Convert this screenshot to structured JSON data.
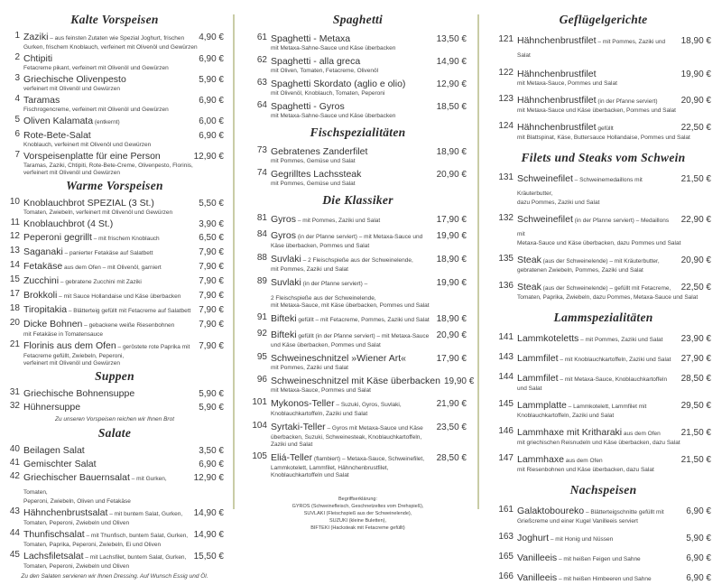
{
  "colors": {
    "divider": "#c9cca6",
    "text": "#3a3a3a"
  },
  "columns": [
    {
      "sections": [
        {
          "title": "Kalte Vorspeisen",
          "items": [
            {
              "no": "1",
              "name": "Zaziki",
              "inline": " – aus feinsten Zutaten wie Spezial Joghurt, frischen",
              "desc": [
                "Gurken, frischem Knoblauch, verfeinert mit Olivenöl und Gewürzen"
              ],
              "price": "4,90 €"
            },
            {
              "no": "2",
              "name": "Chtipiti",
              "inline": "",
              "desc": [
                "Fetacreme pikant, verfeinert mit Olivenöl und Gewürzen"
              ],
              "price": "6,90 €"
            },
            {
              "no": "3",
              "name": "Griechische Olivenpesto",
              "inline": "",
              "desc": [
                "verfeinert mit Olivenöl und Gewürzen"
              ],
              "price": "5,90 €"
            },
            {
              "no": "4",
              "name": "Taramas",
              "inline": "",
              "desc": [
                "Fischrogencreme, verfeinert mit Olivenöl und Gewürzen"
              ],
              "price": "6,90 €"
            },
            {
              "no": "5",
              "name": "Oliven Kalamata",
              "inline": " (entkernt)",
              "desc": [],
              "price": "6,00 €"
            },
            {
              "no": "6",
              "name": "Rote-Bete-Salat",
              "inline": "",
              "desc": [
                "Knoblauch, verfeinert mit Olivenöl und Gewürzen"
              ],
              "price": "6,90 €"
            },
            {
              "no": "7",
              "name": "Vorspeisenplatte für eine Person",
              "inline": "",
              "desc": [
                "Taramas, Zaziki, Chtipiti, Rote-Bete-Creme, Olivenpesto, Florinis,",
                "verfeinert mit Olivenöl und Gewürzen"
              ],
              "price": "12,90 €"
            }
          ]
        },
        {
          "title": "Warme Vorspeisen",
          "items": [
            {
              "no": "10",
              "name": "Knoblauchbrot SPEZIAL (3 St.)",
              "inline": "",
              "desc": [
                "Tomaten, Zwiebeln, verfeinert mit Olivenöl und Gewürzen"
              ],
              "price": "5,50 €"
            },
            {
              "no": "11",
              "name": "Knoblauchbrot (4 St.)",
              "inline": "",
              "desc": [],
              "price": "3,90 €"
            },
            {
              "no": "12",
              "name": "Peperoni gegrillt",
              "inline": " – mit frischem Knoblauch",
              "desc": [],
              "price": "6,50 €"
            },
            {
              "no": "13",
              "name": "Saganaki",
              "inline": " – panierter Fetakäse auf Salatbett",
              "desc": [],
              "price": "7,90 €"
            },
            {
              "no": "14",
              "name": "Fetakäse",
              "inline": " aus dem Ofen – mit Olivenöl, garniert",
              "desc": [],
              "price": "7,90 €"
            },
            {
              "no": "15",
              "name": "Zucchini",
              "inline": " – gebratene Zucchini mit Zaziki",
              "desc": [],
              "price": "7,90 €"
            },
            {
              "no": "17",
              "name": "Brokkoli",
              "inline": " – mit Sauce Hollandaise und Käse überbacken",
              "desc": [],
              "price": "7,90 €"
            },
            {
              "no": "18",
              "name": "Tiropitakia",
              "inline": " – Blätterteig gefüllt mit Fetacreme auf Salatbett",
              "desc": [],
              "price": "7,90 €"
            },
            {
              "no": "20",
              "name": "Dicke Bohnen",
              "inline": " – gebackene weiße Riesenbohnen",
              "desc": [
                "mit Fetakäse in Tomatensauce"
              ],
              "price": "7,90 €"
            },
            {
              "no": "21",
              "name": "Florinis aus dem Ofen",
              "inline": " – geröstete rote Paprika mit",
              "desc": [
                "Fetacreme gefüllt, Zwiebeln, Peperoni,",
                "verfeinert mit Olivenöl und Gewürzen"
              ],
              "price": "7,90 €"
            }
          ]
        },
        {
          "title": "Suppen",
          "items": [
            {
              "no": "31",
              "name": "Griechische Bohnensuppe",
              "inline": "",
              "desc": [],
              "price": "5,90 €"
            },
            {
              "no": "32",
              "name": "Hühnersuppe",
              "inline": "",
              "desc": [],
              "price": "5,90 €"
            }
          ],
          "note": "Zu unseren Vorspeisen reichen wir Ihnen Brot"
        },
        {
          "title": "Salate",
          "items": [
            {
              "no": "40",
              "name": "Beilagen Salat",
              "inline": "",
              "desc": [],
              "price": "3,50 €"
            },
            {
              "no": "41",
              "name": "Gemischter Salat",
              "inline": "",
              "desc": [],
              "price": "6,90 €"
            },
            {
              "no": "42",
              "name": "Griechischer Bauernsalat",
              "inline": " – mit Gurken, Tomaten,",
              "desc": [
                "Peperoni, Zwiebeln, Oliven und Fetakäse"
              ],
              "price": "12,90 €"
            },
            {
              "no": "43",
              "name": "Hähnchenbrustsalat",
              "inline": " – mit buntem Salat, Gurken,",
              "desc": [
                "Tomaten, Peperoni, Zwiebeln und Oliven"
              ],
              "price": "14,90 €"
            },
            {
              "no": "44",
              "name": "Thunfischsalat",
              "inline": " – mit Thunfisch, buntem Salat, Gurken,",
              "desc": [
                "Tomaten, Paprika, Peperoni, Zwiebeln, Ei und Oliven"
              ],
              "price": "14,90 €"
            },
            {
              "no": "45",
              "name": "Lachsfiletsalat",
              "inline": " – mit Lachsfilet, buntem Salat, Gurken,",
              "desc": [
                "Tomaten, Peperoni, Zwiebeln und Oliven"
              ],
              "price": "15,50 €"
            }
          ],
          "note": "Zu den Salaten servieren wir Ihnen Dressing. Auf Wunsch Essig und Öl."
        }
      ]
    },
    {
      "sections": [
        {
          "title": "Spaghetti",
          "items": [
            {
              "no": "61",
              "name": "Spaghetti - Metaxa",
              "inline": "",
              "desc": [
                "mit Metaxa-Sahne-Sauce und Käse überbacken"
              ],
              "price": "13,50 €"
            },
            {
              "no": "62",
              "name": "Spaghetti - alla greca",
              "inline": "",
              "desc": [
                "mit Oliven, Tomaten, Fetacreme, Olivenöl"
              ],
              "price": "14,90 €"
            },
            {
              "no": "63",
              "name": "Spaghetti Skordato (aglio e olio)",
              "inline": "",
              "desc": [
                "mit Olivenöl, Knoblauch, Tomaten, Peperoni"
              ],
              "price": "12,90 €"
            },
            {
              "no": "64",
              "name": "Spaghetti - Gyros",
              "inline": "",
              "desc": [
                "mit Metaxa-Sahne-Sauce und Käse überbacken"
              ],
              "price": "18,50 €"
            }
          ]
        },
        {
          "title": "Fischspezialitäten",
          "items": [
            {
              "no": "73",
              "name": "Gebratenes Zanderfilet",
              "inline": "",
              "desc": [
                "mit Pommes, Gemüse und Salat"
              ],
              "price": "18,90 €"
            },
            {
              "no": "74",
              "name": "Gegrilltes Lachssteak",
              "inline": "",
              "desc": [
                "mit Pommes, Gemüse und Salat"
              ],
              "price": "20,90 €"
            }
          ]
        },
        {
          "title": "Die Klassiker",
          "items": [
            {
              "no": "81",
              "name": "Gyros",
              "inline": " – mit Pommes, Zaziki und Salat",
              "desc": [],
              "price": "17,90 €"
            },
            {
              "no": "84",
              "name": "Gyros",
              "inline": " (in der Pfanne serviert) – mit Metaxa-Sauce und",
              "desc": [
                "Käse überbacken, Pommes und Salat"
              ],
              "price": "19,90 €"
            },
            {
              "no": "88",
              "name": "Suvlaki",
              "inline": " – 2 Fleischspieße aus der Schweinelende,",
              "desc": [
                "mit Pommes, Zaziki und Salat"
              ],
              "price": "18,90 €"
            },
            {
              "no": "89",
              "name": "Suvlaki",
              "inline": " (in der Pfanne serviert) –",
              "desc": [
                "",
                "2 Fleischspieße aus der Schweinelende,",
                "mit Metaxa-Sauce, mit Käse überbacken, Pommes und Salat"
              ],
              "price": "19,90 €"
            },
            {
              "no": "91",
              "name": "Bifteki",
              "inline": " gefüllt – mit Fetacreme, Pommes, Zaziki und Salat",
              "desc": [],
              "price": "18,90 €"
            },
            {
              "no": "92",
              "name": "Bifteki",
              "inline": " gefüllt (in der Pfanne serviert) – mit Metaxa-Sauce",
              "desc": [
                "und Käse überbacken, Pommes und Salat"
              ],
              "price": "20,90 €"
            },
            {
              "no": "95",
              "name": "Schweineschnitzel »Wiener Art«",
              "inline": "",
              "desc": [
                "mit Pommes, Zaziki und Salat"
              ],
              "price": "17,90 €"
            },
            {
              "no": "96",
              "name": "Schweineschnitzel mit Käse überbacken",
              "inline": "",
              "desc": [
                "mit Metaxa-Sauce, Pommes und Salat"
              ],
              "price": "19,90 €"
            },
            {
              "no": "101",
              "name": "Mykonos-Teller",
              "inline": " – Suzuki, Gyros, Suvlaki,",
              "desc": [
                "Knoblauchkartoffeln, Zaziki und Salat"
              ],
              "price": "21,90 €"
            },
            {
              "no": "104",
              "name": "Syrtaki-Teller",
              "inline": " – Gyros mit Metaxa-Sauce und Käse",
              "desc": [
                "überbacken, Suzuki, Schweinesteak, Knoblauchkartoffeln,",
                "Zaziki und Salat"
              ],
              "price": "23,50 €"
            },
            {
              "no": "105",
              "name": "Eliá-Teller",
              "inline": " (flambiert) – Metaxa-Sauce, Schweinefilet,",
              "desc": [
                "Lammkotelett, Lammfilet, Hähnchenbrustfilet,",
                "Knoblauchkartoffeln und Salat"
              ],
              "price": "28,50 €"
            }
          ]
        }
      ],
      "footnote": [
        "Begriffserklärung:",
        "GYROS (Schweinefleisch, Geschnetzeltes vom Drehspieß),",
        "SUVLAKI (Fleischspieß aus der Schweinelende),",
        "SUZUKI (kleine Buletten),",
        "BIFTEKI (Hacksteak mit Fetacreme gefüllt)"
      ]
    },
    {
      "sections": [
        {
          "title": "Geflügelgerichte",
          "items": [
            {
              "no": "121",
              "name": "Hähnchenbrustfilet",
              "inline": " – mit Pommes, Zaziki und Salat",
              "desc": [],
              "price": "18,90 €"
            },
            {
              "no": "122",
              "name": "Hähnchenbrustfilet",
              "inline": "",
              "desc": [
                "mit Metaxa-Sauce, Pommes und Salat"
              ],
              "price": "19,90 €"
            },
            {
              "no": "123",
              "name": "Hähnchenbrustfilet",
              "inline": " (in der Pfanne serviert)",
              "desc": [
                "mit Metaxa-Sauce und Käse überbacken, Pommes und Salat"
              ],
              "price": "20,90 €"
            },
            {
              "no": "124",
              "name": "Hähnchenbrustfilet",
              "inline": " gefüllt",
              "desc": [
                "mit Blattspinat, Käse, Buttersauce Hollandaise, Pommes und Salat"
              ],
              "price": "22,50 €"
            }
          ]
        },
        {
          "title": "Filets und Steaks vom Schwein",
          "items": [
            {
              "no": "131",
              "name": "Schweinefilet",
              "inline": " – Schweinemedaillons mit Kräuterbutter,",
              "desc": [
                "dazu Pommes, Zaziki und Salat"
              ],
              "price": "21,50 €"
            },
            {
              "no": "132",
              "name": "Schweinefilet",
              "inline": " (in der Pfanne serviert) – Medaillons mit",
              "desc": [
                "Metaxa-Sauce und Käse überbacken, dazu Pommes und Salat"
              ],
              "price": "22,90 €"
            },
            {
              "no": "135",
              "name": "Steak",
              "inline": " (aus der Schweinelende) – mit Kräuterbutter,",
              "desc": [
                "gebratenen Zwiebeln, Pommes, Zaziki und Salat"
              ],
              "price": "20,90 €"
            },
            {
              "no": "136",
              "name": "Steak",
              "inline": " (aus der Schweinelende) – gefüllt mit Fetacreme,",
              "desc": [
                "Tomaten, Paprika, Zwiebeln, dazu Pommes, Metaxa-Sauce und Salat"
              ],
              "price": "22,50 €"
            }
          ]
        },
        {
          "title": "Lammspezialitäten",
          "items": [
            {
              "no": "141",
              "name": "Lammkoteletts",
              "inline": " – mit Pommes, Zaziki und Salat",
              "desc": [],
              "price": "23,90 €"
            },
            {
              "no": "143",
              "name": "Lammfilet",
              "inline": " – mit Knoblauchkartoffeln, Zaziki und Salat",
              "desc": [],
              "price": "27,90 €"
            },
            {
              "no": "144",
              "name": "Lammfilet",
              "inline": " – mit Metaxa-Sauce, Knoblauchkartoffeln",
              "desc": [
                "und Salat"
              ],
              "price": "28,50 €"
            },
            {
              "no": "145",
              "name": "Lammplatte",
              "inline": " – Lammkotelett, Lammfilet mit",
              "desc": [
                "Knoblauchkartoffeln, Zaziki und Salat"
              ],
              "price": "29,50 €"
            },
            {
              "no": "146",
              "name": "Lammhaxe mit Kritharaki",
              "inline": " aus dem Ofen",
              "desc": [
                "mit griechischen Reisnudeln und Käse überbacken, dazu Salat"
              ],
              "price": "21,50 €"
            },
            {
              "no": "147",
              "name": "Lammhaxe",
              "inline": " aus dem Ofen",
              "desc": [
                "mit Riesenbohnen und Käse überbacken, dazu Salat"
              ],
              "price": "21,50 €"
            }
          ]
        },
        {
          "title": "Nachspeisen",
          "items": [
            {
              "no": "161",
              "name": "Galaktoboureko",
              "inline": " – Blätterteigschnitte gefüllt mit",
              "desc": [
                "Grießcreme und einer Kugel Vanilleeis serviert"
              ],
              "price": "6,90 €"
            },
            {
              "no": "163",
              "name": "Joghurt",
              "inline": " – mit Honig und Nüssen",
              "desc": [],
              "price": "5,90 €"
            },
            {
              "no": "165",
              "name": "Vanilleeis",
              "inline": " – mit heißen Feigen und Sahne",
              "desc": [],
              "price": "6,90 €"
            },
            {
              "no": "166",
              "name": "Vanilleeis",
              "inline": " – mit heißen Himbeeren und Sahne",
              "desc": [],
              "price": "6,90 €"
            }
          ]
        }
      ]
    }
  ]
}
